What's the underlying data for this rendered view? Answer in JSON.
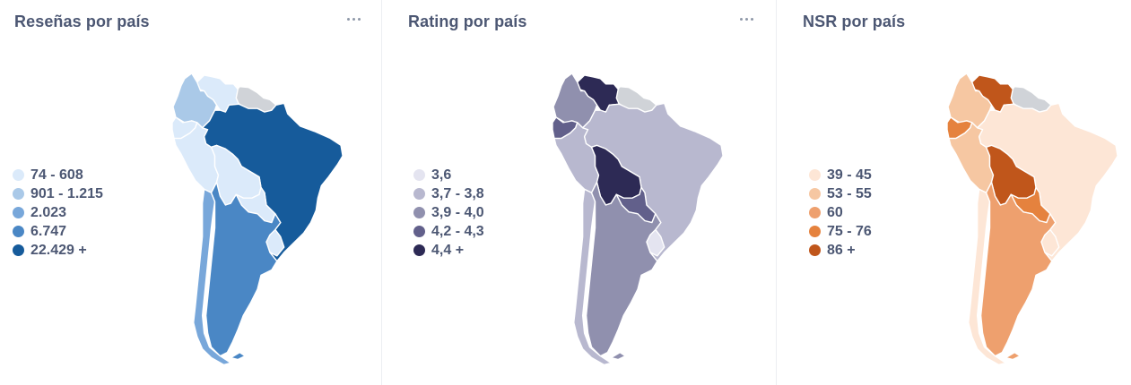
{
  "cards": [
    {
      "title": "Reseñas por país",
      "legend": [
        "74 - 608",
        "901 - 1.215",
        "2.023",
        "6.747",
        "22.429 +"
      ],
      "scale": [
        "#dbeafa",
        "#aac9e8",
        "#78a7da",
        "#4a87c5",
        "#165b9b"
      ],
      "nodata": "#d0d3d8",
      "fills": {
        "colombia": 1,
        "venezuela": 0,
        "guyanas": -1,
        "ecuador": 0,
        "peru": 0,
        "brazil": 4,
        "bolivia": 0,
        "paraguay": 0,
        "chile": 2,
        "argentina": 3,
        "uruguay": 0
      }
    },
    {
      "title": "Rating por país",
      "legend": [
        "3,6",
        "3,7 - 3,8",
        "3,9 - 4,0",
        "4,2 - 4,3",
        "4,4 +"
      ],
      "scale": [
        "#e4e4f0",
        "#b8b8cf",
        "#9090ae",
        "#62608b",
        "#2d2a55"
      ],
      "nodata": "#d0d3d8",
      "fills": {
        "colombia": 2,
        "venezuela": 4,
        "guyanas": -1,
        "ecuador": 3,
        "peru": 1,
        "brazil": 1,
        "bolivia": 4,
        "paraguay": 3,
        "chile": 1,
        "argentina": 2,
        "uruguay": 0
      }
    },
    {
      "title": "NSR por país",
      "legend": [
        "39 - 45",
        "53 - 55",
        "60",
        "75 - 76",
        "86 +"
      ],
      "scale": [
        "#fde6d6",
        "#f6c7a2",
        "#eea06e",
        "#e5823e",
        "#c0561b"
      ],
      "nodata": "#d0d3d8",
      "fills": {
        "colombia": 1,
        "venezuela": 4,
        "guyanas": -1,
        "ecuador": 3,
        "peru": 1,
        "brazil": 0,
        "bolivia": 4,
        "paraguay": 3,
        "chile": 0,
        "argentina": 2,
        "uruguay": 0
      }
    }
  ]
}
